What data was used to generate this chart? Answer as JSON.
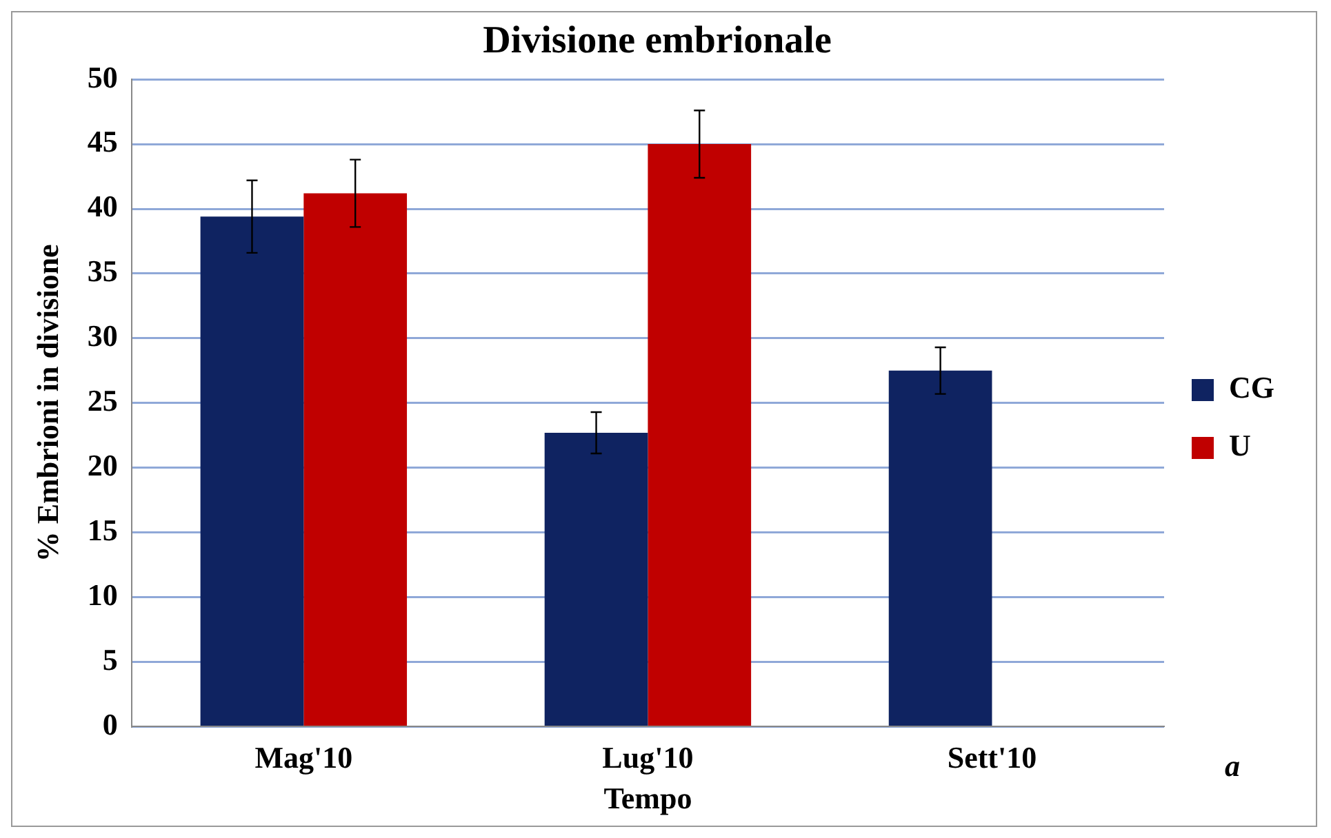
{
  "chart_data": {
    "type": "bar",
    "title": "Divisione embrionale",
    "xlabel": "Tempo",
    "ylabel": "% Embrioni in divisione",
    "categories": [
      "Mag'10",
      "Lug'10",
      "Sett'10"
    ],
    "series": [
      {
        "name": "CG",
        "color": "#0f2361",
        "values": [
          39.4,
          22.7,
          27.5
        ],
        "errors": [
          2.8,
          1.6,
          1.8
        ]
      },
      {
        "name": "U",
        "color": "#c00000",
        "values": [
          41.2,
          45.0,
          null
        ],
        "errors": [
          2.6,
          2.6,
          null
        ]
      }
    ],
    "ylim": [
      0,
      50
    ],
    "yticks": [
      0,
      5,
      10,
      15,
      20,
      25,
      30,
      35,
      40,
      45,
      50
    ],
    "grid": "y",
    "legend": "right",
    "annotations": [
      "a"
    ]
  }
}
